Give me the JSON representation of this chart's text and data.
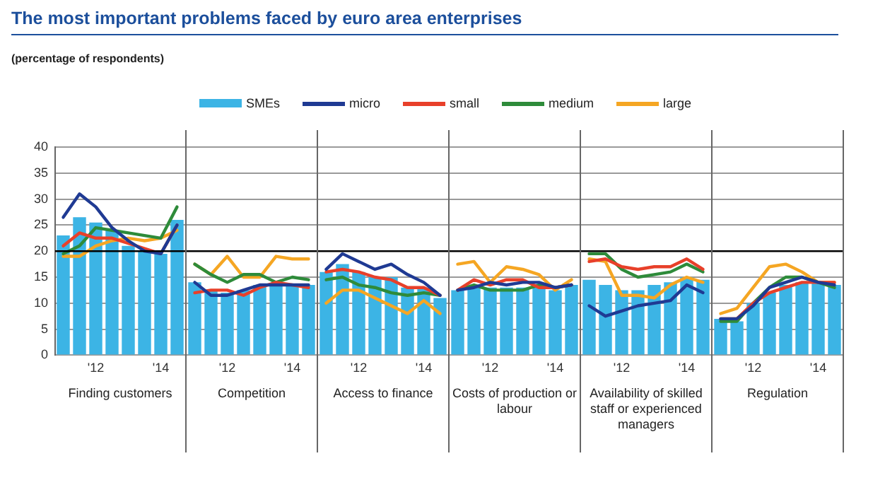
{
  "chart_data": [
    {
      "type": "bar",
      "title": "The most important problems faced by euro area enterprises",
      "subtitle": "(percentage of respondents)",
      "xlabel": "Finding customers",
      "categories": [
        null,
        null,
        "'12",
        null,
        null,
        null,
        "'14",
        null
      ],
      "ylim": [
        0,
        40
      ],
      "yticks": [
        0,
        5,
        10,
        15,
        20,
        25,
        30,
        35,
        40
      ],
      "grid": "y",
      "legend": "top",
      "marker": "none",
      "ref_lines": [
        {
          "axis": "y",
          "value": 20,
          "color": "#000000"
        }
      ],
      "series": [
        {
          "name": "SMEs",
          "color": "#3cb4e5",
          "values": [
            23,
            26.5,
            25.5,
            24,
            21,
            20,
            19.5,
            26
          ]
        },
        {
          "type": "line",
          "name": "micro",
          "color": "#1f3a93",
          "values": [
            26.5,
            31,
            28.5,
            24.5,
            22,
            20,
            19.5,
            25
          ]
        },
        {
          "type": "line",
          "name": "small",
          "color": "#e8402a",
          "values": [
            21,
            23.5,
            22.5,
            22.5,
            21.5,
            20.5,
            19.5,
            25
          ]
        },
        {
          "type": "line",
          "name": "medium",
          "color": "#2e8b3a",
          "values": [
            19.5,
            21,
            24.5,
            24,
            23.5,
            23,
            22.5,
            28.5
          ]
        },
        {
          "type": "line",
          "name": "large",
          "color": "#f5a623",
          "values": [
            19,
            19,
            21,
            22,
            22.5,
            22,
            22.5,
            24
          ]
        }
      ]
    },
    {
      "type": "bar",
      "xlabel": "Competition",
      "categories": [
        null,
        null,
        "'12",
        null,
        null,
        null,
        "'14",
        null
      ],
      "ylim": [
        0,
        40
      ],
      "yticks": [
        0,
        5,
        10,
        15,
        20,
        25,
        30,
        35,
        40
      ],
      "grid": "y",
      "tick_labels": "x",
      "marker": "none",
      "ref_lines": [
        {
          "axis": "y",
          "value": 20,
          "color": "#000000"
        }
      ],
      "series": [
        {
          "color": "#3cb4e5",
          "values": [
            14,
            12.5,
            12,
            12.5,
            13.5,
            13.5,
            13.5,
            13.5
          ]
        },
        {
          "type": "line",
          "color": "#1f3a93",
          "values": [
            14,
            11.5,
            11.5,
            12.5,
            13.5,
            13.5,
            13.5,
            13.5
          ]
        },
        {
          "type": "line",
          "color": "#e8402a",
          "values": [
            12,
            12.5,
            12.5,
            11.5,
            13,
            14,
            13.5,
            13
          ]
        },
        {
          "type": "line",
          "color": "#2e8b3a",
          "values": [
            17.5,
            15.5,
            14,
            15.5,
            15.5,
            14,
            15,
            14.5
          ]
        },
        {
          "type": "line",
          "color": "#f5a623",
          "values": [
            17.5,
            15.5,
            19,
            15,
            15,
            19,
            18.5,
            18.5
          ]
        }
      ]
    },
    {
      "type": "bar",
      "xlabel": "Access to finance",
      "categories": [
        null,
        null,
        "'12",
        null,
        null,
        null,
        "'14",
        null
      ],
      "ylim": [
        0,
        40
      ],
      "yticks": [
        0,
        5,
        10,
        15,
        20,
        25,
        30,
        35,
        40
      ],
      "grid": "y",
      "tick_labels": "x",
      "marker": "none",
      "ref_lines": [
        {
          "axis": "y",
          "value": 20,
          "color": "#000000"
        }
      ],
      "series": [
        {
          "color": "#3cb4e5",
          "values": [
            16,
            17.5,
            16,
            15,
            15,
            13,
            13,
            11
          ]
        },
        {
          "type": "line",
          "color": "#1f3a93",
          "values": [
            16.5,
            19.5,
            18,
            16.5,
            17.5,
            15.5,
            14,
            11.5
          ]
        },
        {
          "type": "line",
          "color": "#e8402a",
          "values": [
            16,
            16.5,
            16,
            15,
            14.5,
            13,
            13,
            11.5
          ]
        },
        {
          "type": "line",
          "color": "#2e8b3a",
          "values": [
            14.5,
            15,
            13.5,
            13,
            12,
            11.5,
            12,
            11.5
          ]
        },
        {
          "type": "line",
          "color": "#f5a623",
          "values": [
            10,
            12.5,
            12.5,
            11,
            9.5,
            8,
            10.5,
            8
          ]
        }
      ]
    },
    {
      "type": "bar",
      "xlabel": "Costs of production or labour",
      "categories": [
        null,
        null,
        "'12",
        null,
        null,
        null,
        "'14",
        null
      ],
      "ylim": [
        0,
        40
      ],
      "yticks": [
        0,
        5,
        10,
        15,
        20,
        25,
        30,
        35,
        40
      ],
      "grid": "y",
      "tick_labels": "x",
      "marker": "none",
      "ref_lines": [
        {
          "axis": "y",
          "value": 20,
          "color": "#000000"
        }
      ],
      "series": [
        {
          "color": "#3cb4e5",
          "values": [
            12.5,
            13,
            13,
            13,
            13,
            13,
            12.5,
            13.5
          ]
        },
        {
          "type": "line",
          "color": "#1f3a93",
          "values": [
            12.5,
            13,
            14,
            13.5,
            14,
            14,
            13,
            13.5
          ]
        },
        {
          "type": "line",
          "color": "#e8402a",
          "values": [
            12.5,
            14.5,
            13.5,
            14.5,
            14.5,
            13,
            13,
            13.5
          ]
        },
        {
          "type": "line",
          "color": "#2e8b3a",
          "values": [
            12.5,
            13.5,
            12.5,
            12.5,
            12.5,
            13.5,
            13,
            13.5
          ]
        },
        {
          "type": "line",
          "color": "#f5a623",
          "values": [
            17.5,
            18,
            14,
            17,
            16.5,
            15.5,
            12.5,
            14.5
          ]
        }
      ]
    },
    {
      "type": "bar",
      "xlabel": "Availability of skilled staff or experienced managers",
      "categories": [
        null,
        null,
        "'12",
        null,
        null,
        null,
        "'14",
        null
      ],
      "ylim": [
        0,
        40
      ],
      "yticks": [
        0,
        5,
        10,
        15,
        20,
        25,
        30,
        35,
        40
      ],
      "grid": "y",
      "tick_labels": "x",
      "marker": "none",
      "ref_lines": [
        {
          "axis": "y",
          "value": 20,
          "color": "#000000"
        }
      ],
      "series": [
        {
          "color": "#3cb4e5",
          "values": [
            14.5,
            13.5,
            12.5,
            12.5,
            13.5,
            14,
            15,
            14.5
          ]
        },
        {
          "type": "line",
          "color": "#1f3a93",
          "values": [
            9.5,
            7.5,
            8.5,
            9.5,
            10,
            10.5,
            13.5,
            12
          ]
        },
        {
          "type": "line",
          "color": "#e8402a",
          "values": [
            18,
            18.5,
            17,
            16.5,
            17,
            17,
            18.5,
            16.5
          ]
        },
        {
          "type": "line",
          "color": "#2e8b3a",
          "values": [
            19.5,
            19.5,
            16.5,
            15,
            15.5,
            16,
            17.5,
            16
          ]
        },
        {
          "type": "line",
          "color": "#f5a623",
          "values": [
            18.5,
            18,
            11.5,
            11.5,
            11,
            13.5,
            15,
            14
          ]
        }
      ]
    },
    {
      "type": "bar",
      "xlabel": "Regulation",
      "categories": [
        null,
        null,
        "'12",
        null,
        null,
        null,
        "'14",
        null
      ],
      "ylim": [
        0,
        40
      ],
      "yticks": [
        0,
        5,
        10,
        15,
        20,
        25,
        30,
        35,
        40
      ],
      "grid": "y",
      "tick_labels": "x",
      "marker": "none",
      "ref_lines": [
        {
          "axis": "y",
          "value": 20,
          "color": "#000000"
        }
      ],
      "series": [
        {
          "color": "#3cb4e5",
          "values": [
            7,
            6.5,
            10,
            12,
            13.5,
            14,
            14,
            13.5
          ]
        },
        {
          "type": "line",
          "color": "#1f3a93",
          "values": [
            7,
            7,
            9.5,
            13,
            14,
            15,
            14,
            13.5
          ]
        },
        {
          "type": "line",
          "color": "#e8402a",
          "values": [
            7,
            7,
            10,
            12,
            13,
            14,
            14,
            14
          ]
        },
        {
          "type": "line",
          "color": "#2e8b3a",
          "values": [
            6.5,
            6.5,
            10,
            13,
            15,
            15,
            14,
            13
          ]
        },
        {
          "type": "line",
          "color": "#f5a623",
          "values": [
            8,
            9,
            13,
            17,
            17.5,
            16,
            14,
            14
          ]
        }
      ]
    }
  ]
}
